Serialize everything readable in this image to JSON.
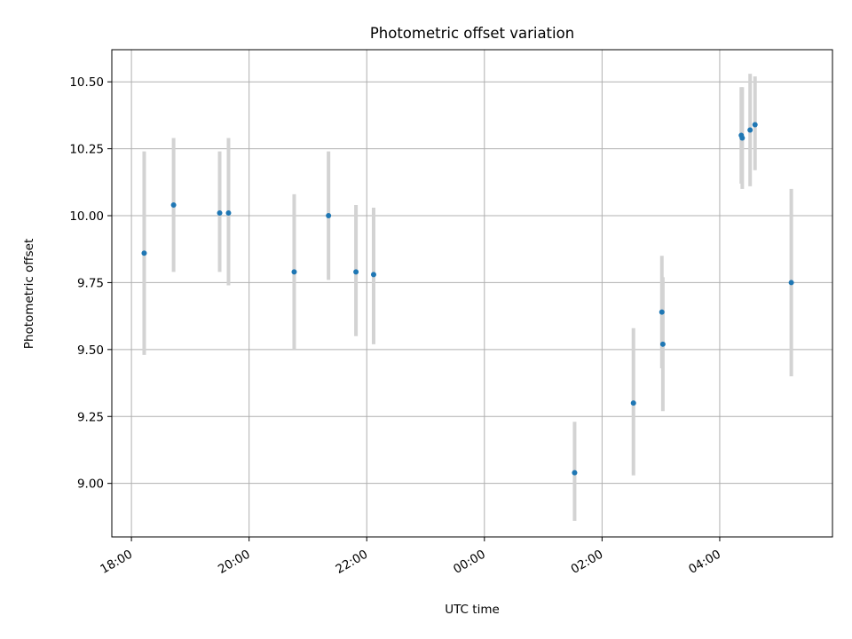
{
  "chart_data": {
    "type": "scatter",
    "title": "Photometric offset variation",
    "xlabel": "UTC time",
    "ylabel": "Photometric offset",
    "grid": true,
    "legend": "none",
    "x_axis": {
      "kind": "time",
      "range": [
        "17:40",
        "05:55"
      ],
      "ticks": [
        "18:00",
        "20:00",
        "22:00",
        "00:00",
        "02:00",
        "04:00"
      ]
    },
    "y_axis": {
      "range": [
        8.8,
        10.62
      ],
      "ticks": [
        9.0,
        9.25,
        9.5,
        9.75,
        10.0,
        10.25,
        10.5
      ],
      "tick_labels": [
        "9.00",
        "9.25",
        "9.50",
        "9.75",
        "10.00",
        "10.25",
        "10.50"
      ]
    },
    "colors": {
      "marker": "#1f77b4",
      "errorbar": "#d3d3d3",
      "grid": "#b0b0b0"
    },
    "points": [
      {
        "time": "18:13",
        "y": 9.86,
        "err_low": 9.48,
        "err_high": 10.24
      },
      {
        "time": "18:43",
        "y": 10.04,
        "err_low": 9.79,
        "err_high": 10.29
      },
      {
        "time": "19:30",
        "y": 10.01,
        "err_low": 9.79,
        "err_high": 10.24
      },
      {
        "time": "19:39",
        "y": 10.01,
        "err_low": 9.74,
        "err_high": 10.29
      },
      {
        "time": "20:46",
        "y": 9.79,
        "err_low": 9.5,
        "err_high": 10.08
      },
      {
        "time": "21:21",
        "y": 10.0,
        "err_low": 9.76,
        "err_high": 10.24
      },
      {
        "time": "21:49",
        "y": 9.79,
        "err_low": 9.55,
        "err_high": 10.04
      },
      {
        "time": "22:07",
        "y": 9.78,
        "err_low": 9.52,
        "err_high": 10.03
      },
      {
        "time": "01:32",
        "y": 9.04,
        "err_low": 8.86,
        "err_high": 9.23
      },
      {
        "time": "02:32",
        "y": 9.3,
        "err_low": 9.03,
        "err_high": 9.58
      },
      {
        "time": "03:01",
        "y": 9.64,
        "err_low": 9.43,
        "err_high": 9.85
      },
      {
        "time": "03:02",
        "y": 9.52,
        "err_low": 9.27,
        "err_high": 9.77
      },
      {
        "time": "04:22",
        "y": 10.3,
        "err_low": 10.12,
        "err_high": 10.48
      },
      {
        "time": "04:23",
        "y": 10.29,
        "err_low": 10.1,
        "err_high": 10.48
      },
      {
        "time": "04:31",
        "y": 10.32,
        "err_low": 10.11,
        "err_high": 10.53
      },
      {
        "time": "04:36",
        "y": 10.34,
        "err_low": 10.17,
        "err_high": 10.52
      },
      {
        "time": "05:13",
        "y": 9.75,
        "err_low": 9.4,
        "err_high": 10.1
      }
    ]
  }
}
